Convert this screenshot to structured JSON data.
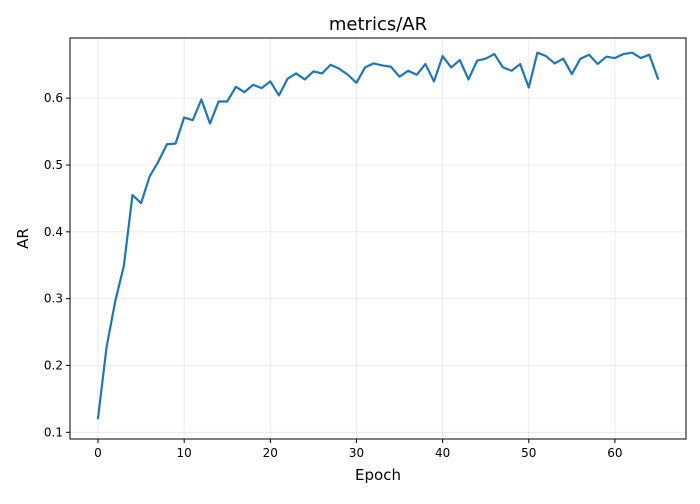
{
  "chart_data": {
    "type": "line",
    "title": "metrics/AR",
    "xlabel": "Epoch",
    "ylabel": "AR",
    "xlim": [
      -3.25,
      68.25
    ],
    "ylim": [
      0.09,
      0.69
    ],
    "grid": true,
    "xticks": [
      0,
      10,
      20,
      30,
      40,
      50,
      60
    ],
    "yticks": [
      0.1,
      0.2,
      0.3,
      0.4,
      0.5,
      0.6
    ],
    "series": [
      {
        "color": "#1f77b4",
        "x": [
          0,
          1,
          2,
          3,
          4,
          5,
          6,
          7,
          8,
          9,
          10,
          11,
          12,
          13,
          14,
          15,
          16,
          17,
          18,
          19,
          20,
          21,
          22,
          23,
          24,
          25,
          26,
          27,
          28,
          29,
          30,
          31,
          32,
          33,
          34,
          35,
          36,
          37,
          38,
          39,
          40,
          41,
          42,
          43,
          44,
          45,
          46,
          47,
          48,
          49,
          50,
          51,
          52,
          53,
          54,
          55,
          56,
          57,
          58,
          59,
          60,
          61,
          62,
          63,
          64,
          65
        ],
        "y": [
          0.121,
          0.228,
          0.296,
          0.349,
          0.455,
          0.443,
          0.483,
          0.505,
          0.531,
          0.532,
          0.571,
          0.567,
          0.598,
          0.562,
          0.595,
          0.595,
          0.617,
          0.609,
          0.62,
          0.615,
          0.625,
          0.604,
          0.629,
          0.637,
          0.628,
          0.64,
          0.637,
          0.65,
          0.644,
          0.635,
          0.623,
          0.646,
          0.652,
          0.649,
          0.647,
          0.632,
          0.641,
          0.635,
          0.651,
          0.625,
          0.663,
          0.646,
          0.657,
          0.628,
          0.656,
          0.659,
          0.666,
          0.646,
          0.641,
          0.651,
          0.616,
          0.668,
          0.663,
          0.652,
          0.659,
          0.636,
          0.659,
          0.665,
          0.651,
          0.662,
          0.66,
          0.666,
          0.668,
          0.66,
          0.665,
          0.629
        ]
      }
    ]
  }
}
